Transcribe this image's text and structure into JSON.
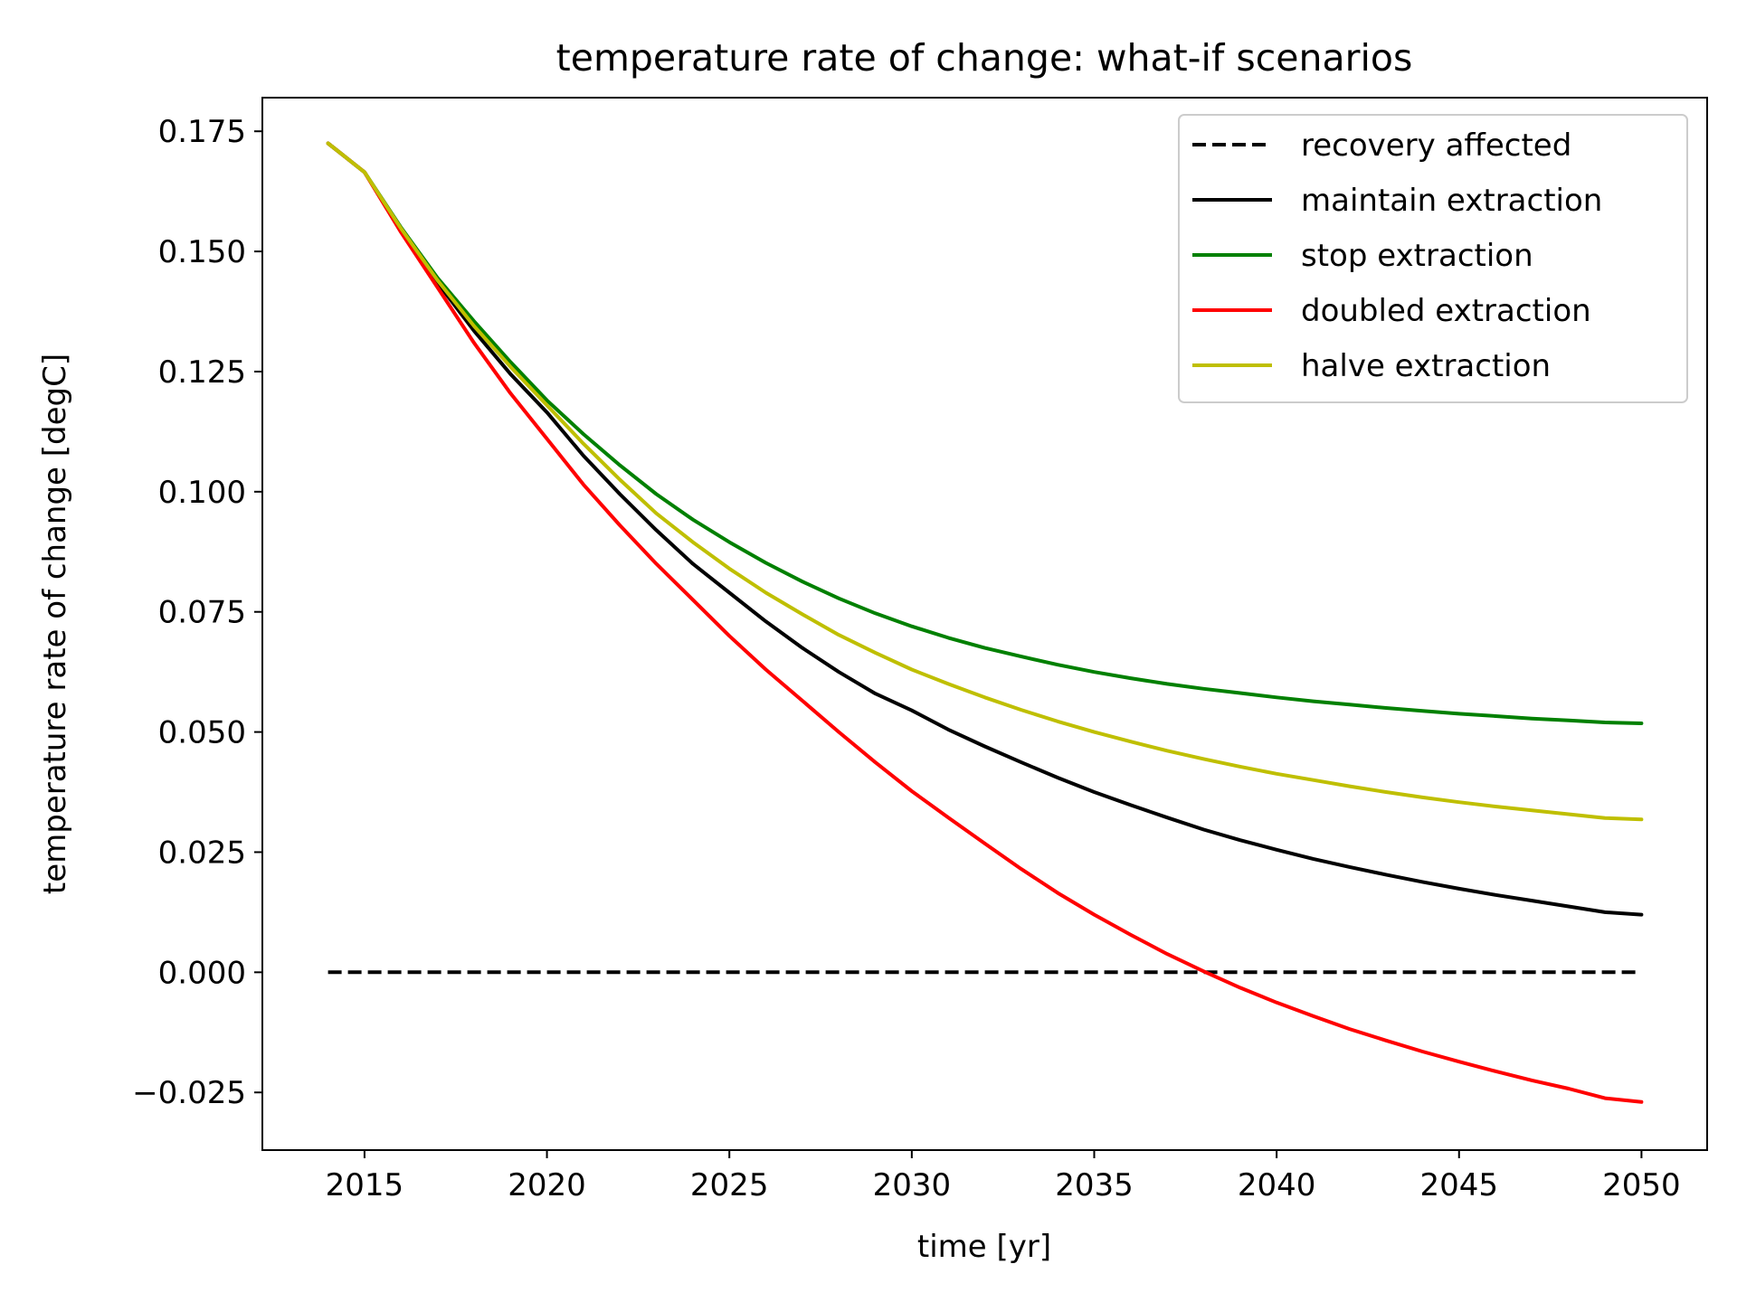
{
  "chart_data": {
    "type": "line",
    "title": "temperature rate of change: what-if scenarios",
    "xlabel": "time [yr]",
    "ylabel": "temperature rate of change [degC]",
    "xlim": [
      2012.2,
      2051.8
    ],
    "ylim": [
      -0.037,
      0.182
    ],
    "xticks": [
      2015,
      2020,
      2025,
      2030,
      2035,
      2040,
      2045,
      2050
    ],
    "xtick_labels": [
      "2015",
      "2020",
      "2025",
      "2030",
      "2035",
      "2040",
      "2045",
      "2050"
    ],
    "yticks": [
      -0.025,
      0.0,
      0.025,
      0.05,
      0.075,
      0.1,
      0.125,
      0.15,
      0.175
    ],
    "ytick_labels": [
      "−0.025",
      "0.000",
      "0.025",
      "0.050",
      "0.075",
      "0.100",
      "0.125",
      "0.150",
      "0.175"
    ],
    "grid": false,
    "legend_position": "top-right",
    "x": [
      2014,
      2015,
      2016,
      2017,
      2018,
      2019,
      2020,
      2021,
      2022,
      2023,
      2024,
      2025,
      2026,
      2027,
      2028,
      2029,
      2030,
      2031,
      2032,
      2033,
      2034,
      2035,
      2036,
      2037,
      2038,
      2039,
      2040,
      2041,
      2042,
      2043,
      2044,
      2045,
      2046,
      2047,
      2048,
      2049,
      2050
    ],
    "series": [
      {
        "name": "recovery affected",
        "color": "#000000",
        "dash": "dashed",
        "values": [
          0,
          0,
          0,
          0,
          0,
          0,
          0,
          0,
          0,
          0,
          0,
          0,
          0,
          0,
          0,
          0,
          0,
          0,
          0,
          0,
          0,
          0,
          0,
          0,
          0,
          0,
          0,
          0,
          0,
          0,
          0,
          0,
          0,
          0,
          0,
          0,
          0
        ]
      },
      {
        "name": "maintain extraction",
        "color": "#000000",
        "dash": "solid",
        "values": [
          0.1725,
          0.1665,
          0.1545,
          0.1435,
          0.1335,
          0.1245,
          0.1165,
          0.1075,
          0.0995,
          0.092,
          0.085,
          0.079,
          0.073,
          0.0675,
          0.0625,
          0.058,
          0.0545,
          0.0505,
          0.047,
          0.0437,
          0.0405,
          0.0375,
          0.0348,
          0.0322,
          0.0297,
          0.0275,
          0.0255,
          0.0236,
          0.0219,
          0.0203,
          0.0188,
          0.0174,
          0.0161,
          0.0149,
          0.0137,
          0.0125,
          0.012
        ]
      },
      {
        "name": "stop extraction",
        "color": "#008000",
        "dash": "solid",
        "values": [
          0.1725,
          0.1665,
          0.155,
          0.1445,
          0.1355,
          0.127,
          0.119,
          0.112,
          0.1055,
          0.0995,
          0.0942,
          0.0895,
          0.0852,
          0.0813,
          0.0778,
          0.0747,
          0.072,
          0.0696,
          0.0675,
          0.0657,
          0.064,
          0.0625,
          0.0612,
          0.06,
          0.059,
          0.0581,
          0.0572,
          0.0564,
          0.0557,
          0.055,
          0.0544,
          0.0538,
          0.0533,
          0.0528,
          0.0524,
          0.052,
          0.0518
        ]
      },
      {
        "name": "doubled extraction",
        "color": "#ff0000",
        "dash": "solid",
        "values": [
          0.1725,
          0.1665,
          0.154,
          0.1425,
          0.131,
          0.1205,
          0.111,
          0.1015,
          0.093,
          0.085,
          0.0775,
          0.07,
          0.063,
          0.0565,
          0.05,
          0.0437,
          0.0377,
          0.0322,
          0.0268,
          0.0215,
          0.0165,
          0.012,
          0.0078,
          0.0038,
          0.0002,
          -0.0032,
          -0.0063,
          -0.0091,
          -0.0118,
          -0.0142,
          -0.0165,
          -0.0186,
          -0.0206,
          -0.0225,
          -0.0242,
          -0.0262,
          -0.027
        ]
      },
      {
        "name": "halve extraction",
        "color": "#bfbf00",
        "dash": "solid",
        "values": [
          0.1725,
          0.1665,
          0.1548,
          0.144,
          0.1345,
          0.126,
          0.118,
          0.11,
          0.1025,
          0.0955,
          0.0895,
          0.084,
          0.079,
          0.0745,
          0.0702,
          0.0665,
          0.063,
          0.06,
          0.0572,
          0.0546,
          0.0522,
          0.05,
          0.048,
          0.0461,
          0.0444,
          0.0428,
          0.0413,
          0.04,
          0.0387,
          0.0375,
          0.0364,
          0.0354,
          0.0345,
          0.0337,
          0.0329,
          0.0321,
          0.0318
        ]
      }
    ]
  }
}
